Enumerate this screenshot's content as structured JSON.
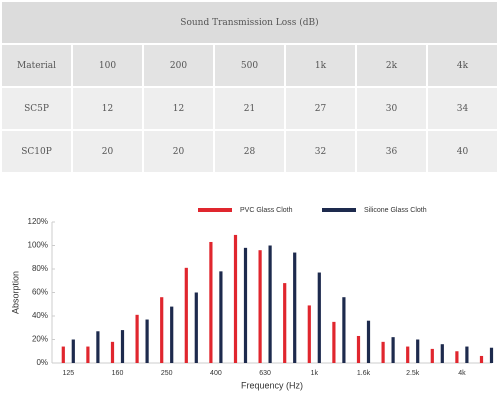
{
  "table": {
    "title": "Sound Transmission Loss (dB)",
    "header": [
      "Material",
      "100",
      "200",
      "500",
      "1k",
      "2k",
      "4k"
    ],
    "rows": [
      [
        "SC5P",
        12,
        12,
        21,
        27,
        30,
        34
      ],
      [
        "SC10P",
        20,
        20,
        28,
        32,
        36,
        40
      ]
    ]
  },
  "chart_data": {
    "type": "bar",
    "x_label": "Frequency (Hz)",
    "y_label": "Absorption",
    "categories": [
      "125",
      null,
      "160",
      null,
      "250",
      null,
      "400",
      null,
      "630",
      null,
      "1k",
      null,
      "1.6k",
      null,
      "2.5k",
      null,
      "4k",
      null
    ],
    "series": [
      {
        "name": "PVC Glass Cloth",
        "color": "#e0262e",
        "values": [
          14,
          14,
          18,
          41,
          56,
          81,
          103,
          109,
          96,
          68,
          49,
          35,
          23,
          18,
          14,
          12,
          10,
          6
        ]
      },
      {
        "name": "Silicone Glass Cloth",
        "color": "#1d2a4d",
        "values": [
          20,
          27,
          28,
          37,
          48,
          60,
          78,
          98,
          100,
          94,
          77,
          56,
          36,
          22,
          20,
          16,
          14,
          13
        ]
      }
    ],
    "ylim": [
      0,
      120
    ],
    "yticks": [
      {
        "value": 0,
        "label": "0%"
      },
      {
        "value": 20,
        "label": "20%"
      },
      {
        "value": 40,
        "label": "40%"
      },
      {
        "value": 60,
        "label": "60%"
      },
      {
        "value": 80,
        "label": "80%"
      },
      {
        "value": 100,
        "label": "100%"
      },
      {
        "value": 120,
        "label": "120%"
      }
    ],
    "legend": "top"
  }
}
